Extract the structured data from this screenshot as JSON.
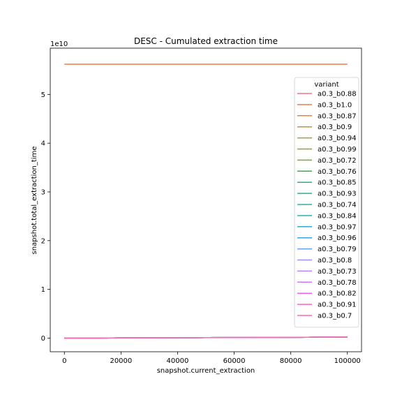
{
  "chart_data": {
    "type": "line",
    "title": "DESC - Cumulated extraction time",
    "xlabel": "snapshot.current_extraction",
    "ylabel": "snapshot.total_extraction_time",
    "y_offset_text": "1e10",
    "xlim": [
      -5000,
      105000
    ],
    "ylim": [
      -0.28,
      5.95
    ],
    "x_ticks": [
      0,
      20000,
      40000,
      60000,
      80000,
      100000
    ],
    "x_tick_labels": [
      "0",
      "20000",
      "40000",
      "60000",
      "80000",
      "100000"
    ],
    "y_ticks": [
      0,
      1,
      2,
      3,
      4,
      5
    ],
    "y_tick_labels": [
      "0",
      "1",
      "2",
      "3",
      "4",
      "5"
    ],
    "grid": false,
    "legend": {
      "title": "variant",
      "placement": "right"
    },
    "series": [
      {
        "name": "a0.3_b0.88",
        "color": "#f77189",
        "x": [
          0,
          100000
        ],
        "y": [
          0,
          0.02
        ]
      },
      {
        "name": "a0.3_b1.0",
        "color": "#f7754f",
        "x": [
          0,
          100000
        ],
        "y": [
          5.62,
          5.62
        ]
      },
      {
        "name": "a0.3_b0.87",
        "color": "#dc8932",
        "x": [
          0,
          100000
        ],
        "y": [
          0,
          0.02
        ]
      },
      {
        "name": "a0.3_b0.9",
        "color": "#c39532",
        "x": [
          0,
          100000
        ],
        "y": [
          0,
          0.02
        ]
      },
      {
        "name": "a0.3_b0.94",
        "color": "#ae9d31",
        "x": [
          0,
          100000
        ],
        "y": [
          0,
          0.02
        ]
      },
      {
        "name": "a0.3_b0.99",
        "color": "#97a431",
        "x": [
          0,
          100000
        ],
        "y": [
          0,
          0.02
        ]
      },
      {
        "name": "a0.3_b0.72",
        "color": "#77ab31",
        "x": [
          0,
          100000
        ],
        "y": [
          0,
          0.02
        ]
      },
      {
        "name": "a0.3_b0.76",
        "color": "#33b040",
        "x": [
          0,
          100000
        ],
        "y": [
          0,
          0.02
        ]
      },
      {
        "name": "a0.3_b0.85",
        "color": "#34ae81",
        "x": [
          0,
          100000
        ],
        "y": [
          0,
          0.02
        ]
      },
      {
        "name": "a0.3_b0.93",
        "color": "#35ac9a",
        "x": [
          0,
          100000
        ],
        "y": [
          0,
          0.02
        ]
      },
      {
        "name": "a0.3_b0.74",
        "color": "#36ada4",
        "x": [
          0,
          100000
        ],
        "y": [
          0,
          0.02
        ]
      },
      {
        "name": "a0.3_b0.84",
        "color": "#37abb4",
        "x": [
          0,
          100000
        ],
        "y": [
          0,
          0.02
        ]
      },
      {
        "name": "a0.3_b0.97",
        "color": "#38aabf",
        "x": [
          0,
          100000
        ],
        "y": [
          0,
          0.02
        ]
      },
      {
        "name": "a0.3_b0.96",
        "color": "#3ba3ec",
        "x": [
          0,
          100000
        ],
        "y": [
          0,
          0.02
        ]
      },
      {
        "name": "a0.3_b0.79",
        "color": "#6e9bf4",
        "x": [
          0,
          100000
        ],
        "y": [
          0,
          0.02
        ]
      },
      {
        "name": "a0.3_b0.8",
        "color": "#9a8ff5",
        "x": [
          0,
          100000
        ],
        "y": [
          0,
          0.02
        ]
      },
      {
        "name": "a0.3_b0.73",
        "color": "#bb83f4",
        "x": [
          0,
          100000
        ],
        "y": [
          0,
          0.02
        ]
      },
      {
        "name": "a0.3_b0.78",
        "color": "#cc7af4",
        "x": [
          0,
          100000
        ],
        "y": [
          0,
          0.02
        ]
      },
      {
        "name": "a0.3_b0.82",
        "color": "#f45cf2",
        "x": [
          0,
          100000
        ],
        "y": [
          0,
          0.02
        ]
      },
      {
        "name": "a0.3_b0.91",
        "color": "#f565cc",
        "x": [
          0,
          100000
        ],
        "y": [
          0,
          0.02
        ]
      },
      {
        "name": "a0.3_b0.7",
        "color": "#f66bad",
        "x": [
          0,
          100000
        ],
        "y": [
          0,
          0.02
        ]
      }
    ]
  }
}
